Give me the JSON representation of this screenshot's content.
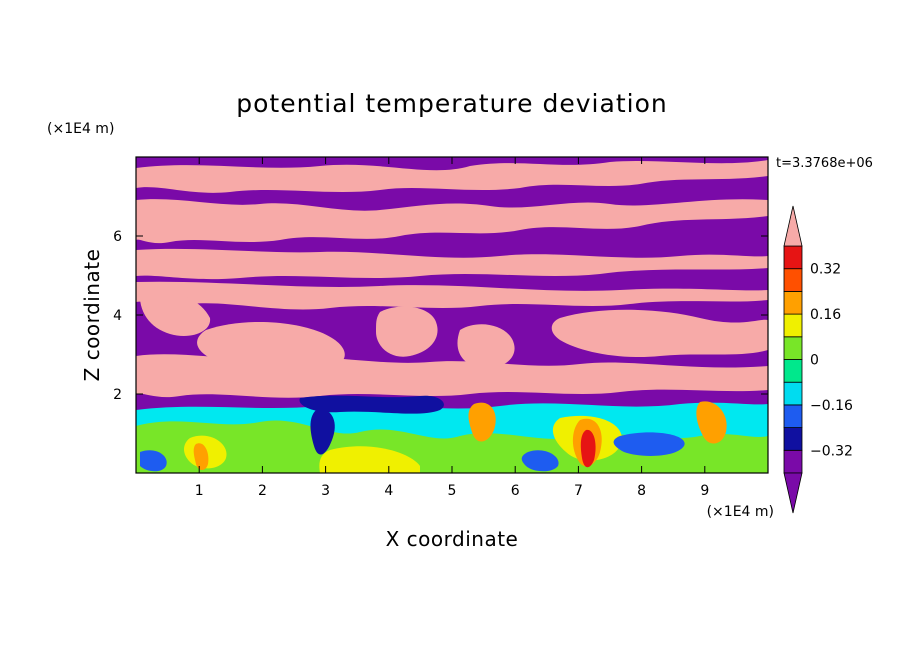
{
  "chart_data": {
    "type": "heatmap",
    "title": "potential temperature deviation",
    "xlabel": "X coordinate",
    "ylabel": "Z coordinate",
    "x_unit": "(×1E4 m)",
    "y_unit": "(×1E4 m)",
    "time_label": "t=3.3768e+06",
    "xlim": [
      0,
      10
    ],
    "ylim": [
      0,
      8
    ],
    "x_ticks": [
      "1",
      "2",
      "3",
      "4",
      "5",
      "6",
      "7",
      "8",
      "9"
    ],
    "x_tick_values": [
      1,
      2,
      3,
      4,
      5,
      6,
      7,
      8,
      9
    ],
    "y_ticks": [
      "2",
      "4",
      "6"
    ],
    "y_tick_values": [
      2,
      4,
      6
    ],
    "colorbar": {
      "labels": [
        "0.32",
        "0.16",
        "0",
        "−0.16",
        "−0.32"
      ],
      "label_values": [
        0.32,
        0.16,
        0,
        -0.16,
        -0.32
      ],
      "levels": [
        -0.4,
        -0.32,
        -0.24,
        -0.16,
        -0.08,
        0,
        0.08,
        0.16,
        0.24,
        0.32,
        0.4
      ],
      "colors": [
        "#7a0aa8",
        "#1010a0",
        "#1e5cf0",
        "#00dcf0",
        "#00e88c",
        "#78e628",
        "#f0f000",
        "#ffa000",
        "#ff5000",
        "#e61414"
      ],
      "under_color": "#7a0aa8",
      "over_color": "#f7aaa8"
    }
  },
  "colors": {
    "upper_purple": "#7a0aa8",
    "upper_pink": "#f7aaa8",
    "boundary_layer_green": "#78e628",
    "boundary_layer_cyan": "#00e8f0"
  }
}
